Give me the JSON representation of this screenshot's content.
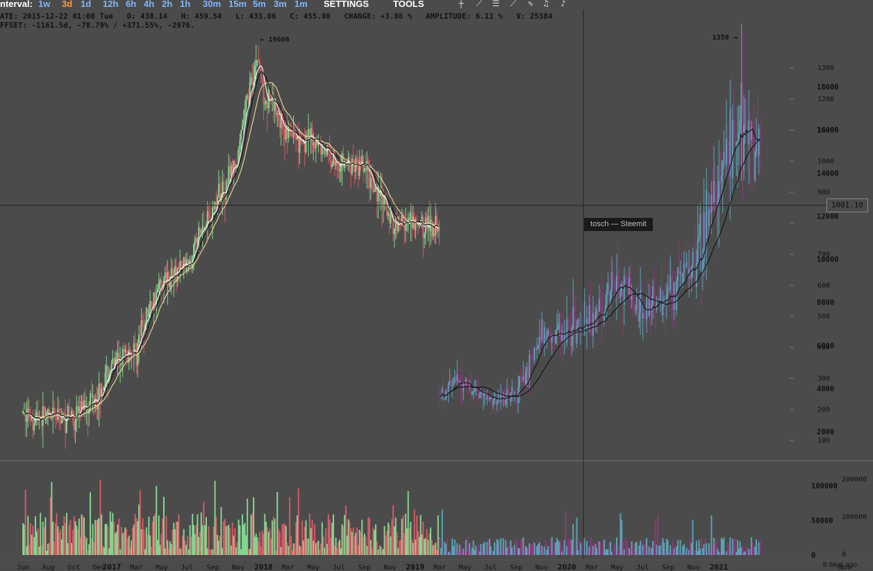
{
  "toolbar": {
    "interval_label": "nterval:",
    "intervals": [
      "1w",
      "3d",
      "1d",
      "12h",
      "6h",
      "4h",
      "2h",
      "1h",
      "30m",
      "15m",
      "5m",
      "3m",
      "1m"
    ],
    "active_interval": "3d",
    "settings_label": "SETTINGS",
    "tools_label": "TOOLS"
  },
  "info": {
    "line1": "ATE: 2015-12-22 01:00 Tue   O: 438.14   H: 459.54   L: 433.06   C: 455.00   CHANGE: +3.86 %   AMPLITUDE: 6.11 %   V: 25384",
    "line2": "FFSET: -1161.5d, -78.79% / +371.55%, -2976."
  },
  "tooltip": "tosch — Steemit",
  "price_marker": "1001.10",
  "footer_note": "8 days ago",
  "colors": {
    "background": "#4b4b4b",
    "bull": "#86d48f",
    "bear": "#d45b68",
    "bull_late": "#5aa3b5",
    "bear_late": "#8a3a7a",
    "ma_white": "#ffffff",
    "ma_yellow": "#f4dc9a",
    "ma_black": "#111111",
    "text": "#111111",
    "crosshair": "#222222"
  },
  "chart_data": [
    {
      "type": "candlestick",
      "title": "",
      "annotations": [
        {
          "text": "← 19666",
          "x": "2017-12-17",
          "y": 19666
        },
        {
          "text": "1350 →",
          "x": "2021-02-21",
          "y": 1350
        }
      ],
      "x_tick_labels": [
        "Jun",
        "Aug",
        "Oct",
        "Dec",
        "2017",
        "Mar",
        "May",
        "Jul",
        "Sep",
        "Nov",
        "2018",
        "Mar",
        "May",
        "Jul",
        "Sep",
        "Nov",
        "2019",
        "Mar",
        "May",
        "Jul",
        "Sep",
        "Nov",
        "2020",
        "Mar",
        "May",
        "Jul",
        "Sep",
        "Nov",
        "2021",
        "Nov"
      ],
      "x_tick_dates": [
        "2016-06-01",
        "2016-08-01",
        "2016-10-01",
        "2016-12-01",
        "2017-01-01",
        "2017-03-01",
        "2017-05-01",
        "2017-07-01",
        "2017-09-01",
        "2017-11-01",
        "2018-01-01",
        "2018-03-01",
        "2018-05-01",
        "2018-07-01",
        "2018-09-01",
        "2018-11-01",
        "2019-01-01",
        "2019-03-01",
        "2019-05-01",
        "2019-07-01",
        "2019-09-01",
        "2019-11-01",
        "2020-01-01",
        "2020-03-01",
        "2020-05-01",
        "2020-07-01",
        "2020-09-01",
        "2020-11-01",
        "2021-01-01",
        "2021-11-01"
      ],
      "y_axis_right_outer": {
        "ticks": [
          100,
          200,
          300,
          400,
          500,
          600,
          700,
          800,
          900,
          1000,
          1100,
          1200,
          1300
        ],
        "labels": [
          "100",
          "200",
          "300",
          "400",
          "500",
          "600",
          "700",
          "",
          "900",
          "1000",
          "1100",
          "1200",
          "1300"
        ]
      },
      "y_axis_right_inner": {
        "ticks": [
          2000,
          4000,
          6000,
          8000,
          10000,
          12000,
          14000,
          16000,
          18000
        ],
        "labels": [
          "2000",
          "4000",
          "6000",
          "8000",
          "10000",
          "12000",
          "14000",
          "16000",
          "18000"
        ]
      },
      "series": [
        {
          "segment": "overlay (2016-06 to 2019-03)",
          "x": [
            "2016-06-01",
            "2016-08-01",
            "2016-10-01",
            "2016-12-01",
            "2017-01-01",
            "2017-03-01",
            "2017-05-01",
            "2017-07-01",
            "2017-09-01",
            "2017-11-01",
            "2017-12-17",
            "2018-01-01",
            "2018-03-01",
            "2018-05-01",
            "2018-07-01",
            "2018-09-01",
            "2018-11-01",
            "2019-01-01",
            "2019-03-01"
          ],
          "close": [
            620,
            590,
            610,
            760,
            980,
            1150,
            2200,
            2600,
            4400,
            7000,
            19000,
            13500,
            9000,
            8500,
            6800,
            6500,
            4000,
            3700,
            3900
          ]
        },
        {
          "segment": "main (2019-03 to 2021-04)",
          "x": [
            "2019-03-01",
            "2019-05-01",
            "2019-07-01",
            "2019-09-01",
            "2019-11-01",
            "2020-01-01",
            "2020-03-01",
            "2020-05-01",
            "2020-07-01",
            "2020-09-01",
            "2020-11-01",
            "2021-01-01",
            "2021-02-21",
            "2021-03-15",
            "2021-04-10"
          ],
          "close": [
            3900,
            4300,
            3500,
            3700,
            6500,
            6700,
            7200,
            9000,
            7700,
            8600,
            9800,
            13500,
            16000,
            15000,
            16800
          ]
        }
      ],
      "volume": {
        "y_ticks_inner": [
          0,
          50000,
          100000
        ],
        "y_ticks_outer": [
          0,
          100000,
          200000
        ],
        "labels_inner": [
          "0",
          "50000",
          "100000"
        ],
        "labels_outer": [
          "0",
          "100000",
          "200000"
        ]
      },
      "moving_averages": [
        "ma_white",
        "ma_yellow",
        "ma_black"
      ]
    }
  ]
}
